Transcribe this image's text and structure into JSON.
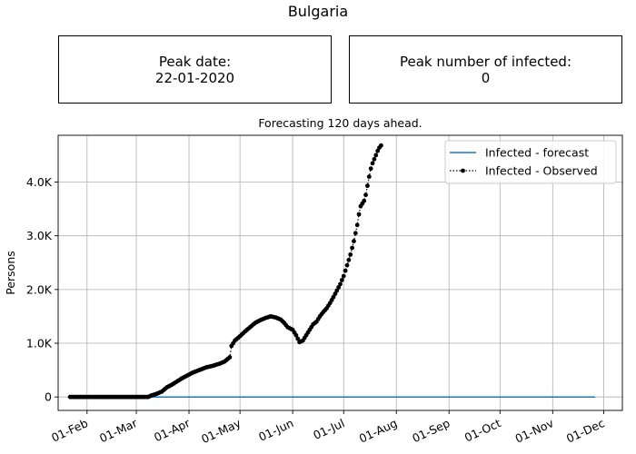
{
  "figure_title": "Bulgaria",
  "info_boxes": {
    "peak_date": {
      "label": "Peak date:",
      "value": "22-01-2020"
    },
    "peak_infected": {
      "label": "Peak number of infected:",
      "value": "0"
    }
  },
  "chart_data": {
    "type": "line",
    "title": "Forecasting 120 days ahead.",
    "xlabel": "",
    "ylabel": "Persons",
    "x_axis": {
      "type": "date",
      "range": [
        "2020-01-15",
        "2020-12-12"
      ],
      "ticks": [
        {
          "date": "2020-02-01",
          "label": "01-Feb"
        },
        {
          "date": "2020-03-01",
          "label": "01-Mar"
        },
        {
          "date": "2020-04-01",
          "label": "01-Apr"
        },
        {
          "date": "2020-05-01",
          "label": "01-May"
        },
        {
          "date": "2020-06-01",
          "label": "01-Jun"
        },
        {
          "date": "2020-07-01",
          "label": "01-Jul"
        },
        {
          "date": "2020-08-01",
          "label": "01-Aug"
        },
        {
          "date": "2020-09-01",
          "label": "01-Sep"
        },
        {
          "date": "2020-10-01",
          "label": "01-Oct"
        },
        {
          "date": "2020-11-01",
          "label": "01-Nov"
        },
        {
          "date": "2020-12-01",
          "label": "01-Dec"
        }
      ]
    },
    "y_axis": {
      "range": [
        -250,
        4870
      ],
      "ticks": [
        {
          "value": 0,
          "label": "0"
        },
        {
          "value": 1000,
          "label": "1.0K"
        },
        {
          "value": 2000,
          "label": "2.0K"
        },
        {
          "value": 3000,
          "label": "3.0K"
        },
        {
          "value": 4000,
          "label": "4.0K"
        }
      ]
    },
    "grid": true,
    "legend_position": "top-right",
    "series": [
      {
        "name": "Infected - forecast",
        "style": "solid-line",
        "color": "#1f77b4",
        "points": [
          {
            "x": "2020-01-22",
            "y": 0
          },
          {
            "x": "2020-11-26",
            "y": 0
          }
        ]
      },
      {
        "name": "Infected - Observed",
        "style": "dotted-line-dots",
        "color": "#000000",
        "points": [
          {
            "x": "2020-01-22",
            "y": 0
          },
          {
            "x": "2020-02-01",
            "y": 0
          },
          {
            "x": "2020-02-15",
            "y": 0
          },
          {
            "x": "2020-03-01",
            "y": 0
          },
          {
            "x": "2020-03-08",
            "y": 0
          },
          {
            "x": "2020-03-10",
            "y": 30
          },
          {
            "x": "2020-03-13",
            "y": 60
          },
          {
            "x": "2020-03-16",
            "y": 100
          },
          {
            "x": "2020-03-19",
            "y": 180
          },
          {
            "x": "2020-03-22",
            "y": 230
          },
          {
            "x": "2020-03-25",
            "y": 290
          },
          {
            "x": "2020-03-28",
            "y": 350
          },
          {
            "x": "2020-03-31",
            "y": 400
          },
          {
            "x": "2020-04-03",
            "y": 450
          },
          {
            "x": "2020-04-07",
            "y": 500
          },
          {
            "x": "2020-04-11",
            "y": 550
          },
          {
            "x": "2020-04-15",
            "y": 580
          },
          {
            "x": "2020-04-19",
            "y": 620
          },
          {
            "x": "2020-04-22",
            "y": 660
          },
          {
            "x": "2020-04-25",
            "y": 740
          },
          {
            "x": "2020-04-26",
            "y": 950
          },
          {
            "x": "2020-04-28",
            "y": 1050
          },
          {
            "x": "2020-05-01",
            "y": 1130
          },
          {
            "x": "2020-05-04",
            "y": 1220
          },
          {
            "x": "2020-05-07",
            "y": 1300
          },
          {
            "x": "2020-05-10",
            "y": 1380
          },
          {
            "x": "2020-05-13",
            "y": 1430
          },
          {
            "x": "2020-05-16",
            "y": 1470
          },
          {
            "x": "2020-05-19",
            "y": 1500
          },
          {
            "x": "2020-05-22",
            "y": 1480
          },
          {
            "x": "2020-05-25",
            "y": 1440
          },
          {
            "x": "2020-05-27",
            "y": 1380
          },
          {
            "x": "2020-05-29",
            "y": 1300
          },
          {
            "x": "2020-06-01",
            "y": 1250
          },
          {
            "x": "2020-06-03",
            "y": 1150
          },
          {
            "x": "2020-06-05",
            "y": 1020
          },
          {
            "x": "2020-06-07",
            "y": 1050
          },
          {
            "x": "2020-06-09",
            "y": 1150
          },
          {
            "x": "2020-06-11",
            "y": 1250
          },
          {
            "x": "2020-06-13",
            "y": 1350
          },
          {
            "x": "2020-06-15",
            "y": 1400
          },
          {
            "x": "2020-06-17",
            "y": 1500
          },
          {
            "x": "2020-06-19",
            "y": 1580
          },
          {
            "x": "2020-06-21",
            "y": 1650
          },
          {
            "x": "2020-06-23",
            "y": 1750
          },
          {
            "x": "2020-06-25",
            "y": 1860
          },
          {
            "x": "2020-06-27",
            "y": 1980
          },
          {
            "x": "2020-06-29",
            "y": 2100
          },
          {
            "x": "2020-07-01",
            "y": 2250
          },
          {
            "x": "2020-07-03",
            "y": 2450
          },
          {
            "x": "2020-07-05",
            "y": 2650
          },
          {
            "x": "2020-07-07",
            "y": 2900
          },
          {
            "x": "2020-07-09",
            "y": 3200
          },
          {
            "x": "2020-07-10",
            "y": 3400
          },
          {
            "x": "2020-07-11",
            "y": 3550
          },
          {
            "x": "2020-07-13",
            "y": 3650
          },
          {
            "x": "2020-07-14",
            "y": 3760
          },
          {
            "x": "2020-07-16",
            "y": 4100
          },
          {
            "x": "2020-07-17",
            "y": 4250
          },
          {
            "x": "2020-07-18",
            "y": 4350
          },
          {
            "x": "2020-07-20",
            "y": 4500
          },
          {
            "x": "2020-07-21",
            "y": 4580
          },
          {
            "x": "2020-07-22",
            "y": 4640
          },
          {
            "x": "2020-07-23",
            "y": 4680
          }
        ]
      }
    ]
  }
}
